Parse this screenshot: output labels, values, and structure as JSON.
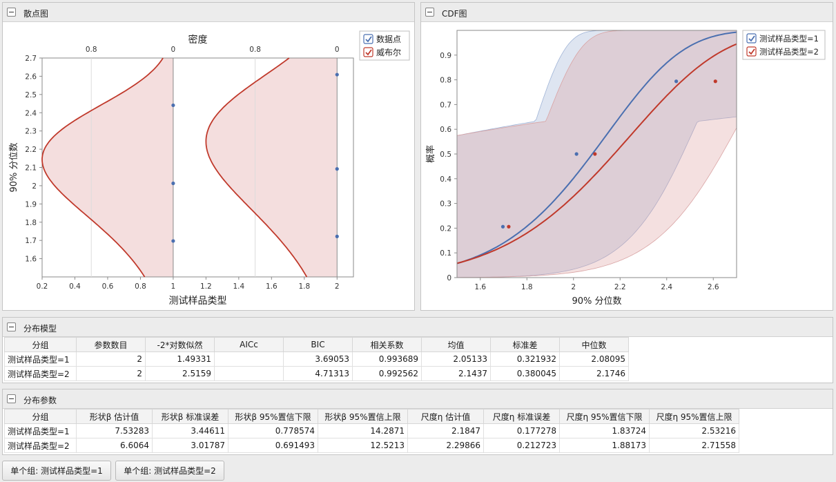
{
  "scatter_panel": {
    "title": "散点图",
    "legend": [
      {
        "label": "数据点",
        "color": "#4a6fb0"
      },
      {
        "label": "威布尔",
        "color": "#c0392b"
      }
    ]
  },
  "cdf_panel": {
    "title": "CDF图",
    "legend": [
      {
        "label": "测试样品类型=1",
        "color": "#4a6fb0"
      },
      {
        "label": "测试样品类型=2",
        "color": "#c0392b"
      }
    ]
  },
  "chart_data": [
    {
      "type": "scatter",
      "xlabel": "测试样品类型",
      "ylabel": "90% 分位数",
      "x2label": "密度",
      "x_ticks": [
        "0.2",
        "0.4",
        "0.6",
        "0.8",
        "1",
        "1.2",
        "1.4",
        "1.6",
        "1.8",
        "2"
      ],
      "x2_ticks": [
        "0.8",
        "0",
        "0.8",
        "0"
      ],
      "y_ticks": [
        "1.6",
        "1.7",
        "1.8",
        "1.9",
        "2",
        "2.1",
        "2.2",
        "2.3",
        "2.4",
        "2.5",
        "2.6",
        "2.7"
      ],
      "ylim": [
        1.5,
        2.7
      ],
      "xlim": [
        0.2,
        2.1
      ],
      "series": [
        {
          "name": "测试样品类型=1",
          "x": 1,
          "points": [
            1.697,
            2.013,
            2.441
          ],
          "weibull": {
            "beta": 7.53283,
            "eta": 2.1847
          }
        },
        {
          "name": "测试样品类型=2",
          "x": 2,
          "points": [
            1.722,
            2.092,
            2.609
          ],
          "weibull": {
            "beta": 6.6064,
            "eta": 2.29866
          }
        }
      ]
    },
    {
      "type": "line",
      "xlabel": "90% 分位数",
      "ylabel": "概率",
      "x_ticks": [
        "1.6",
        "1.8",
        "2",
        "2.2",
        "2.4",
        "2.6"
      ],
      "y_ticks": [
        "0",
        "0.1",
        "0.2",
        "0.3",
        "0.4",
        "0.5",
        "0.6",
        "0.7",
        "0.8",
        "0.9"
      ],
      "xlim": [
        1.5,
        2.7
      ],
      "ylim": [
        0,
        1
      ],
      "series": [
        {
          "name": "测试样品类型=1",
          "points": [
            [
              1.697,
              0.206
            ],
            [
              2.013,
              0.5
            ],
            [
              2.441,
              0.794
            ]
          ],
          "beta": 7.53283,
          "eta": 2.1847,
          "beta_lo": 0.778574,
          "beta_hi": 14.2871,
          "eta_lo": 1.83724,
          "eta_hi": 2.53216
        },
        {
          "name": "测试样品类型=2",
          "points": [
            [
              1.722,
              0.206
            ],
            [
              2.092,
              0.5
            ],
            [
              2.609,
              0.794
            ]
          ],
          "beta": 6.6064,
          "eta": 2.29866,
          "beta_lo": 0.691493,
          "beta_hi": 12.5213,
          "eta_lo": 1.88173,
          "eta_hi": 2.71558
        }
      ]
    }
  ],
  "model_panel": {
    "title": "分布模型",
    "headers": [
      "分组",
      "参数数目",
      "-2*对数似然",
      "AICc",
      "BIC",
      "相关系数",
      "均值",
      "标准差",
      "中位数"
    ],
    "rows": [
      [
        "测试样品类型=1",
        "2",
        "1.49331",
        "",
        "3.69053",
        "0.993689",
        "2.05133",
        "0.321932",
        "2.08095"
      ],
      [
        "测试样品类型=2",
        "2",
        "2.5159",
        "",
        "4.71313",
        "0.992562",
        "2.1437",
        "0.380045",
        "2.1746"
      ]
    ]
  },
  "param_panel": {
    "title": "分布参数",
    "headers": [
      "分组",
      "形状β 估计值",
      "形状β 标准误差",
      "形状β 95%置信下限",
      "形状β 95%置信上限",
      "尺度η 估计值",
      "尺度η 标准误差",
      "尺度η 95%置信下限",
      "尺度η 95%置信上限"
    ],
    "rows": [
      [
        "测试样品类型=1",
        "7.53283",
        "3.44611",
        "0.778574",
        "14.2871",
        "2.1847",
        "0.177278",
        "1.83724",
        "2.53216"
      ],
      [
        "测试样品类型=2",
        "6.6064",
        "3.01787",
        "0.691493",
        "12.5213",
        "2.29866",
        "0.212723",
        "1.88173",
        "2.71558"
      ]
    ]
  },
  "buttons": [
    "单个组: 测试样品类型=1",
    "单个组: 测试样品类型=2"
  ]
}
